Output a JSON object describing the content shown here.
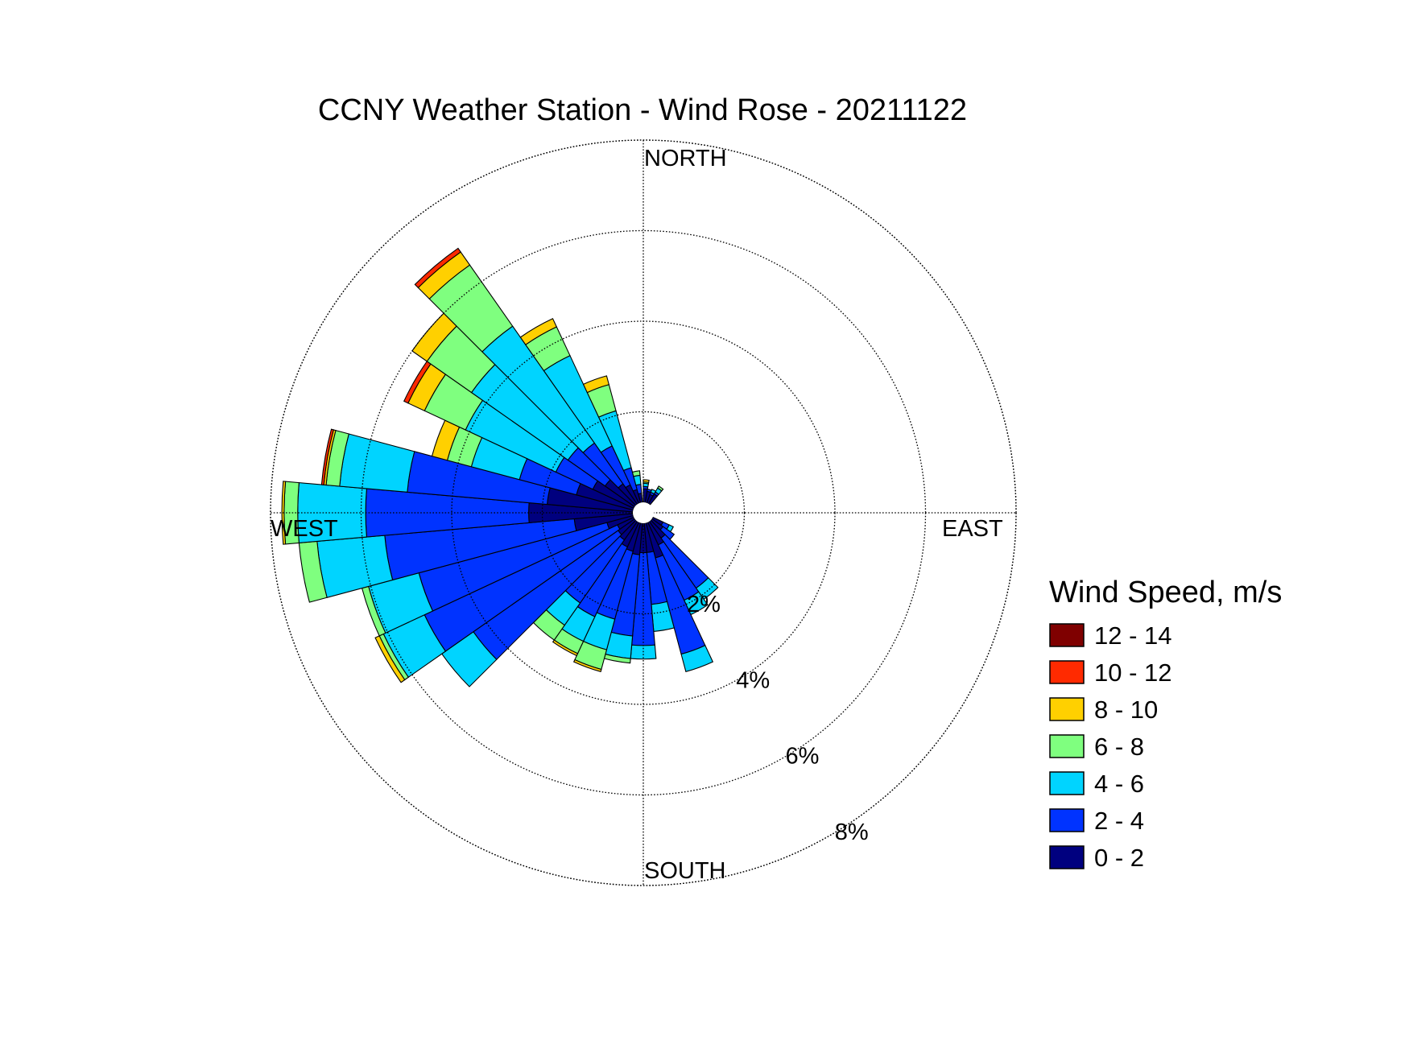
{
  "chart_data": {
    "type": "wind-rose",
    "title": "CCNY Weather Station - Wind Rose - 20211122",
    "direction_labels": {
      "north": "NORTH",
      "east": "EAST",
      "south": "SOUTH",
      "west": "WEST"
    },
    "radial_ticks": [
      {
        "value": 2,
        "label": "2%"
      },
      {
        "value": 4,
        "label": "4%"
      },
      {
        "value": 6,
        "label": "6%"
      },
      {
        "value": 8,
        "label": "8%"
      }
    ],
    "r_max_percent": 8,
    "legend_title": "Wind Speed, m/s",
    "legend_position": "right",
    "speed_bins": [
      {
        "label": "0 - 2",
        "color": "#00007f"
      },
      {
        "label": "2 - 4",
        "color": "#0033ff"
      },
      {
        "label": "4 - 6",
        "color": "#00d4ff"
      },
      {
        "label": "6 - 8",
        "color": "#7fff7f"
      },
      {
        "label": "8 - 10",
        "color": "#ffd000"
      },
      {
        "label": "10 - 12",
        "color": "#ff2a00"
      },
      {
        "label": "12 - 14",
        "color": "#7f0000"
      }
    ],
    "direction_unit": "degrees clockwise from north",
    "sector_width_deg": 10,
    "sectors": [
      {
        "direction": 5,
        "cumulative": [
          0.3,
          0.35,
          0.42,
          0.45,
          0.5
        ]
      },
      {
        "direction": 15,
        "cumulative": [
          0.25,
          0.3
        ]
      },
      {
        "direction": 25,
        "cumulative": [
          0.2,
          0.25,
          0.32
        ]
      },
      {
        "direction": 35,
        "cumulative": [
          0.25,
          0.3,
          0.4,
          0.45
        ]
      },
      {
        "direction": 120,
        "cumulative": [
          0.25,
          0.4,
          0.5
        ]
      },
      {
        "direction": 130,
        "cumulative": [
          0.3,
          0.6
        ]
      },
      {
        "direction": 140,
        "cumulative": [
          0.45,
          1.8,
          2.1
        ]
      },
      {
        "direction": 150,
        "cumulative": [
          0.55,
          1.9,
          2.25
        ]
      },
      {
        "direction": 160,
        "cumulative": [
          0.8,
          3.0,
          3.4
        ]
      },
      {
        "direction": 170,
        "cumulative": [
          0.65,
          1.8,
          2.4
        ]
      },
      {
        "direction": 180,
        "cumulative": [
          0.65,
          2.7,
          3.0
        ]
      },
      {
        "direction": 190,
        "cumulative": [
          0.7,
          2.5,
          3.0,
          3.1
        ]
      },
      {
        "direction": 200,
        "cumulative": [
          0.65,
          2.2,
          2.9,
          3.35,
          3.4
        ]
      },
      {
        "direction": 210,
        "cumulative": [
          0.6,
          2.3,
          2.9,
          3.2,
          3.25
        ]
      },
      {
        "direction": 220,
        "cumulative": [
          0.5,
          2.2,
          2.8,
          3.2
        ]
      },
      {
        "direction": 230,
        "cumulative": [
          0.45,
          4.35,
          5.2
        ]
      },
      {
        "direction": 240,
        "cumulative": [
          0.4,
          5.1,
          6.1,
          6.2,
          6.3
        ]
      },
      {
        "direction": 250,
        "cumulative": [
          0.6,
          4.9,
          6.05,
          6.2
        ]
      },
      {
        "direction": 260,
        "cumulative": [
          1.3,
          5.5,
          7.0,
          7.4
        ]
      },
      {
        "direction": 270,
        "cumulative": [
          2.3,
          5.9,
          7.4,
          7.7,
          7.75
        ]
      },
      {
        "direction": 280,
        "cumulative": [
          1.9,
          5.0,
          6.5,
          6.8,
          6.85,
          6.9
        ]
      },
      {
        "direction": 290,
        "cumulative": [
          1.3,
          2.6,
          3.7,
          4.25,
          4.6
        ]
      },
      {
        "direction": 300,
        "cumulative": [
          1.0,
          1.9,
          4.1,
          5.1,
          5.5,
          5.6
        ]
      },
      {
        "direction": 310,
        "cumulative": [
          0.8,
          1.8,
          4.4,
          5.6,
          6.0
        ]
      },
      {
        "direction": 320,
        "cumulative": [
          0.55,
          1.65,
          4.8,
          6.45,
          6.8,
          6.9
        ]
      },
      {
        "direction": 330,
        "cumulative": [
          0.45,
          1.4,
          3.6,
          4.3,
          4.5
        ]
      },
      {
        "direction": 340,
        "cumulative": [
          0.3,
          0.8,
          2.1,
          2.7,
          2.9
        ]
      },
      {
        "direction": 350,
        "cumulative": [
          0.2,
          0.4,
          0.6,
          0.7
        ]
      }
    ]
  }
}
